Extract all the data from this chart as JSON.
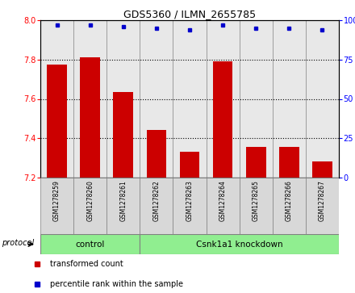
{
  "title": "GDS5360 / ILMN_2655785",
  "samples": [
    "GSM1278259",
    "GSM1278260",
    "GSM1278261",
    "GSM1278262",
    "GSM1278263",
    "GSM1278264",
    "GSM1278265",
    "GSM1278266",
    "GSM1278267"
  ],
  "transformed_count": [
    7.775,
    7.81,
    7.635,
    7.44,
    7.33,
    7.79,
    7.355,
    7.355,
    7.28
  ],
  "percentile_rank": [
    97,
    97,
    96,
    95,
    94,
    97,
    95,
    95,
    94
  ],
  "ylim_left": [
    7.2,
    8.0
  ],
  "ylim_right": [
    0,
    100
  ],
  "yticks_left": [
    7.2,
    7.4,
    7.6,
    7.8,
    8.0
  ],
  "yticks_right": [
    0,
    25,
    50,
    75,
    100
  ],
  "ytick_labels_right": [
    "0",
    "25",
    "50",
    "75",
    "100%"
  ],
  "groups": [
    {
      "label": "control",
      "indices": [
        0,
        1,
        2
      ],
      "color": "#90EE90"
    },
    {
      "label": "Csnk1a1 knockdown",
      "indices": [
        3,
        4,
        5,
        6,
        7,
        8
      ],
      "color": "#90EE90"
    }
  ],
  "group_divider": 3,
  "bar_color": "#CC0000",
  "dot_color": "#0000CC",
  "bar_width": 0.6,
  "plot_bg_color": "#E8E8E8",
  "label_bg_color": "#D8D8D8",
  "protocol_label": "protocol",
  "legend_items": [
    {
      "label": "transformed count",
      "color": "#CC0000"
    },
    {
      "label": "percentile rank within the sample",
      "color": "#0000CC"
    }
  ]
}
